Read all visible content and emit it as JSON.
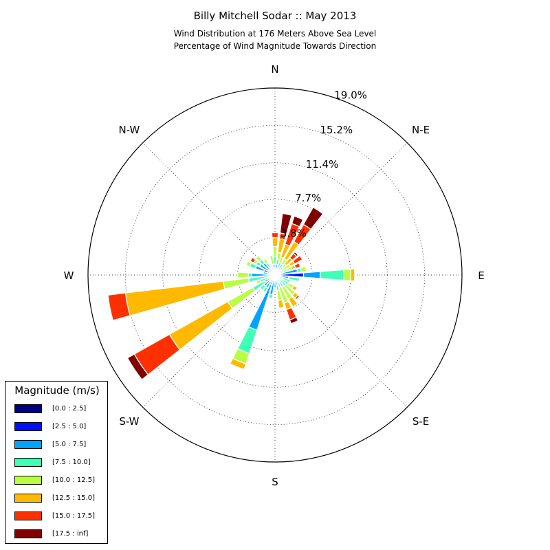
{
  "title": "Billy Mitchell Sodar :: May 2013",
  "subtitle_lines": [
    "Wind Distribution at 176 Meters Above Sea Level",
    "Percentage of Wind Magnitude Towards Direction"
  ],
  "chart_data": {
    "type": "windrose",
    "title": "Billy Mitchell Sodar :: May 2013",
    "subtitle": "Wind Distribution at 176 Meters Above Sea Level / Percentage of Wind Magnitude Towards Direction",
    "direction_labels": [
      "N",
      "N-E",
      "E",
      "S-E",
      "S",
      "S-W",
      "W",
      "N-W"
    ],
    "radial_tick_labels": [
      "3.8%",
      "7.7%",
      "11.4%",
      "15.2%",
      "19.0%"
    ],
    "radial_max": 19.0,
    "legend_title": "Magnitude (m/s)",
    "bins": [
      {
        "label": "[0.0 : 2.5]",
        "color": "#000080"
      },
      {
        "label": "[2.5 : 5.0]",
        "color": "#0010ff"
      },
      {
        "label": "[5.0 : 7.5]",
        "color": "#00a4ff"
      },
      {
        "label": "[7.5 : 10.0]",
        "color": "#40ffb7"
      },
      {
        "label": "[10.0 : 12.5]",
        "color": "#b7ff40"
      },
      {
        "label": "[12.5 : 15.0]",
        "color": "#ffb900"
      },
      {
        "label": "[15.0 : 17.5]",
        "color": "#ff3000"
      },
      {
        "label": "[17.5 : inf]",
        "color": "#800000"
      }
    ],
    "directions_deg": [
      0,
      11.25,
      22.5,
      33.75,
      45,
      56.25,
      67.5,
      78.75,
      90,
      101.25,
      112.5,
      123.75,
      135,
      146.25,
      157.5,
      168.75,
      180,
      191.25,
      202.5,
      213.75,
      225,
      236.25,
      247.5,
      258.75,
      270,
      281.25,
      292.5,
      303.75,
      315,
      326.25,
      337.5,
      348.75
    ],
    "cumulative_percent": [
      [
        0.2,
        0.5,
        1.1,
        1.9,
        2.9,
        3.8,
        4.3,
        4.3
      ],
      [
        0.2,
        0.5,
        1.1,
        1.6,
        2.3,
        3.7,
        4.3,
        6.3
      ],
      [
        0.2,
        0.4,
        0.7,
        1.3,
        1.9,
        3.3,
        5.5,
        6.3
      ],
      [
        0.2,
        0.4,
        0.7,
        1.3,
        1.9,
        3.9,
        5.9,
        7.9
      ],
      [
        0.2,
        0.4,
        0.7,
        1.1,
        1.5,
        2.3,
        2.9,
        3.1
      ],
      [
        0.2,
        0.4,
        0.8,
        1.0,
        1.8,
        2.3,
        3.2,
        3.2
      ],
      [
        0.2,
        0.5,
        0.9,
        1.2,
        1.8,
        2.2,
        2.7,
        2.7
      ],
      [
        0.2,
        0.8,
        2.3,
        2.7,
        3.2,
        3.2,
        3.2,
        3.2
      ],
      [
        0.2,
        2.9,
        4.6,
        7.0,
        7.7,
        8.1,
        8.1,
        8.1
      ],
      [
        0.2,
        0.7,
        1.4,
        2.5,
        2.5,
        2.5,
        2.5,
        2.5
      ],
      [
        0.2,
        0.4,
        0.8,
        1.6,
        1.6,
        1.6,
        1.6,
        1.6
      ],
      [
        0.2,
        0.4,
        0.8,
        1.6,
        2.2,
        2.6,
        2.6,
        2.6
      ],
      [
        0.2,
        0.4,
        0.8,
        1.5,
        2.7,
        3.1,
        3.3,
        3.3
      ],
      [
        0.2,
        0.4,
        0.8,
        1.4,
        2.8,
        3.7,
        3.7,
        3.7
      ],
      [
        0.2,
        0.4,
        0.8,
        1.3,
        3.0,
        3.7,
        4.8,
        5.2
      ],
      [
        0.2,
        0.5,
        1.0,
        1.6,
        2.6,
        3.4,
        3.4,
        3.4
      ],
      [
        0.2,
        0.5,
        1.3,
        1.3,
        1.3,
        1.3,
        1.3,
        1.3
      ],
      [
        0.2,
        0.6,
        2.0,
        2.4,
        2.4,
        2.4,
        2.4,
        2.4
      ],
      [
        0.2,
        1.0,
        5.9,
        8.4,
        9.5,
        10.1,
        10.1,
        10.1
      ],
      [
        0.2,
        0.8,
        1.5,
        2.0,
        2.0,
        2.0,
        2.0,
        2.0
      ],
      [
        0.2,
        0.8,
        1.5,
        2.0,
        2.0,
        2.0,
        2.0,
        2.0
      ],
      [
        0.2,
        0.5,
        1.2,
        2.6,
        5.5,
        12.3,
        16.4,
        17.2
      ],
      [
        0.2,
        0.5,
        0.8,
        1.6,
        2.0,
        2.0,
        2.0,
        2.0
      ],
      [
        0.2,
        0.5,
        0.8,
        2.7,
        5.3,
        15.3,
        17.1,
        17.1
      ],
      [
        0.2,
        0.5,
        2.4,
        2.7,
        3.8,
        3.8,
        3.8,
        3.8
      ],
      [
        0.2,
        0.5,
        1.2,
        1.2,
        1.2,
        1.2,
        1.2,
        1.2
      ],
      [
        0.2,
        1.2,
        2.1,
        2.7,
        3.1,
        3.1,
        3.1,
        3.1
      ],
      [
        0.2,
        0.8,
        1.8,
        2.2,
        2.5,
        2.5,
        2.9,
        2.9
      ],
      [
        0.2,
        0.8,
        1.6,
        2.1,
        2.6,
        2.6,
        2.6,
        2.6
      ],
      [
        0.2,
        0.4,
        0.8,
        1.4,
        1.9,
        1.9,
        1.9,
        1.9
      ],
      [
        0.2,
        0.4,
        0.8,
        1.0,
        1.0,
        1.0,
        1.0,
        1.0
      ],
      [
        0.2,
        0.4,
        0.8,
        1.1,
        2.0,
        2.0,
        2.0,
        2.0
      ]
    ]
  }
}
